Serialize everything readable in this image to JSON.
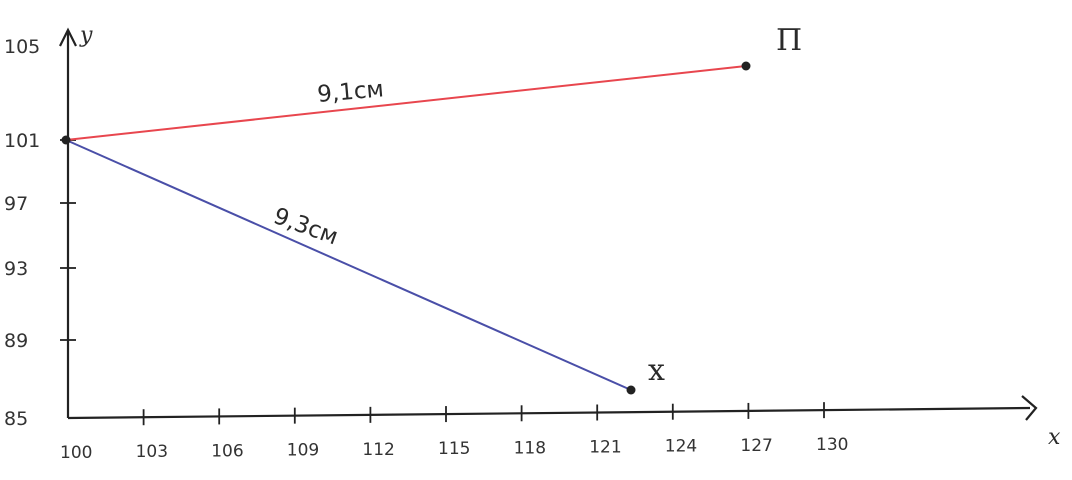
{
  "diagram": {
    "axes": {
      "x_label": "x",
      "y_label": "y",
      "x_ticks": [
        "100",
        "103",
        "106",
        "109",
        "112",
        "115",
        "118",
        "121",
        "124",
        "127",
        "130"
      ],
      "y_ticks": [
        "105",
        "101",
        "97",
        "93",
        "89",
        "85"
      ]
    },
    "points": [
      {
        "id": "origin",
        "label": "",
        "x": 100,
        "y": 100
      },
      {
        "id": "P",
        "label": "П",
        "x": 127,
        "y": 103.4
      },
      {
        "id": "X",
        "label": "x",
        "x": 122.3,
        "y": 86.5
      }
    ],
    "segments": [
      {
        "from": "origin",
        "to": "P",
        "label": "9,1см",
        "color": "#e8464e"
      },
      {
        "from": "origin",
        "to": "X",
        "label": "9,3см",
        "color": "#4a4fa8"
      }
    ],
    "ink_color": "#222222"
  }
}
